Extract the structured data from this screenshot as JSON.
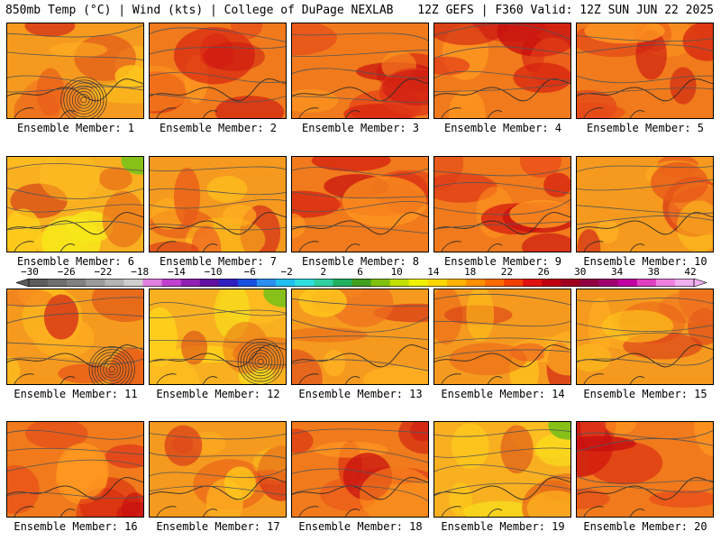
{
  "header": {
    "left_text": "850mb Temp (°C) | Wind (kts) | College of DuPage NEXLAB",
    "right_text": "12Z GEFS | F360 Valid: 12Z SUN JUN 22 2025"
  },
  "panels": [
    {
      "label": "Ensemble Member: 1",
      "tone": "warm",
      "low_center": true
    },
    {
      "label": "Ensemble Member: 2",
      "tone": "hot",
      "low_center": false
    },
    {
      "label": "Ensemble Member: 3",
      "tone": "hot",
      "low_center": false
    },
    {
      "label": "Ensemble Member: 4",
      "tone": "hot",
      "low_center": false
    },
    {
      "label": "Ensemble Member: 5",
      "tone": "hot",
      "low_center": false
    },
    {
      "label": "Ensemble Member: 6",
      "tone": "cool",
      "low_center": false
    },
    {
      "label": "Ensemble Member: 7",
      "tone": "warm",
      "low_center": false
    },
    {
      "label": "Ensemble Member: 8",
      "tone": "hot",
      "low_center": false
    },
    {
      "label": "Ensemble Member: 9",
      "tone": "hot",
      "low_center": false
    },
    {
      "label": "Ensemble Member: 10",
      "tone": "warm",
      "low_center": false
    },
    {
      "label": "Ensemble Member: 11",
      "tone": "warm",
      "low_center": true
    },
    {
      "label": "Ensemble Member: 12",
      "tone": "cool",
      "low_center": true
    },
    {
      "label": "Ensemble Member: 13",
      "tone": "warm",
      "low_center": false
    },
    {
      "label": "Ensemble Member: 14",
      "tone": "warm",
      "low_center": false
    },
    {
      "label": "Ensemble Member: 15",
      "tone": "warm",
      "low_center": false
    },
    {
      "label": "Ensemble Member: 16",
      "tone": "hot",
      "low_center": false
    },
    {
      "label": "Ensemble Member: 17",
      "tone": "warm",
      "low_center": false
    },
    {
      "label": "Ensemble Member: 18",
      "tone": "hot",
      "low_center": false
    },
    {
      "label": "Ensemble Member: 19",
      "tone": "cool",
      "low_center": false
    },
    {
      "label": "Ensemble Member: 20",
      "tone": "hot",
      "low_center": false
    }
  ],
  "colorbar": {
    "labels": [
      "−30",
      "−26",
      "−22",
      "−18",
      "−14",
      "−10",
      "−6",
      "−2",
      "2",
      "6",
      "10",
      "14",
      "18",
      "22",
      "26",
      "30",
      "34",
      "38",
      "42"
    ],
    "colors": [
      "#5c5c5c",
      "#6e6e6e",
      "#808080",
      "#9a9a9a",
      "#b4b4b4",
      "#cfcfcf",
      "#e080e0",
      "#c040d0",
      "#9020b0",
      "#6010a0",
      "#3020c0",
      "#1a50e0",
      "#2a90f0",
      "#20c0f0",
      "#30e0e0",
      "#30d0a0",
      "#20b060",
      "#40a020",
      "#80c010",
      "#c0e000",
      "#f0f000",
      "#ffd700",
      "#ffb300",
      "#ff9000",
      "#ff6a00",
      "#f04000",
      "#e01010",
      "#c00010",
      "#a00020",
      "#900040",
      "#a00070",
      "#c000a0",
      "#e040c0",
      "#f080e0",
      "#f0b0f0"
    ]
  }
}
